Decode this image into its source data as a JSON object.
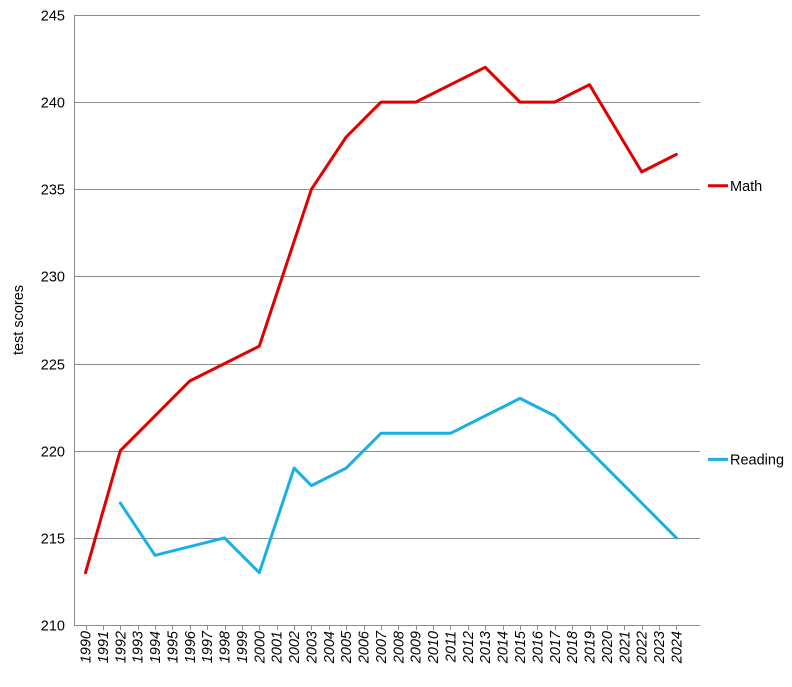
{
  "chart_data": {
    "type": "line",
    "title": "",
    "xlabel": "",
    "ylabel": "test scores",
    "ylim": [
      210,
      245
    ],
    "y_ticks": [
      "210",
      "215",
      "220",
      "225",
      "230",
      "235",
      "240",
      "245"
    ],
    "x": [
      "1990",
      "1991",
      "1992",
      "1993",
      "1994",
      "1995",
      "1996",
      "1997",
      "1998",
      "1999",
      "2000",
      "2001",
      "2002",
      "2003",
      "2004",
      "2005",
      "2006",
      "2007",
      "2008",
      "2009",
      "2010",
      "2011",
      "2012",
      "2013",
      "2014",
      "2015",
      "2016",
      "2017",
      "2018",
      "2019",
      "2020",
      "2021",
      "2022",
      "2023",
      "2024"
    ],
    "grid": true,
    "legend": "right",
    "series": [
      {
        "name": "Math",
        "color": "#e00000",
        "points": [
          {
            "x": "1990",
            "y": 213
          },
          {
            "x": "1992",
            "y": 220
          },
          {
            "x": "1996",
            "y": 224
          },
          {
            "x": "2000",
            "y": 226
          },
          {
            "x": "2003",
            "y": 235
          },
          {
            "x": "2005",
            "y": 238
          },
          {
            "x": "2007",
            "y": 240
          },
          {
            "x": "2009",
            "y": 240
          },
          {
            "x": "2011",
            "y": 241
          },
          {
            "x": "2013",
            "y": 242
          },
          {
            "x": "2015",
            "y": 240
          },
          {
            "x": "2017",
            "y": 240
          },
          {
            "x": "2019",
            "y": 241
          },
          {
            "x": "2022",
            "y": 236
          },
          {
            "x": "2024",
            "y": 237
          }
        ]
      },
      {
        "name": "Reading",
        "color": "#1ab0e6",
        "points": [
          {
            "x": "1992",
            "y": 217
          },
          {
            "x": "1994",
            "y": 214
          },
          {
            "x": "1998",
            "y": 215
          },
          {
            "x": "2000",
            "y": 213
          },
          {
            "x": "2002",
            "y": 219
          },
          {
            "x": "2003",
            "y": 218
          },
          {
            "x": "2005",
            "y": 219
          },
          {
            "x": "2007",
            "y": 221
          },
          {
            "x": "2009",
            "y": 221
          },
          {
            "x": "2011",
            "y": 221
          },
          {
            "x": "2013",
            "y": 222
          },
          {
            "x": "2015",
            "y": 223
          },
          {
            "x": "2017",
            "y": 222
          },
          {
            "x": "2019",
            "y": 220
          },
          {
            "x": "2022",
            "y": 217
          },
          {
            "x": "2024",
            "y": 215
          }
        ]
      }
    ]
  }
}
